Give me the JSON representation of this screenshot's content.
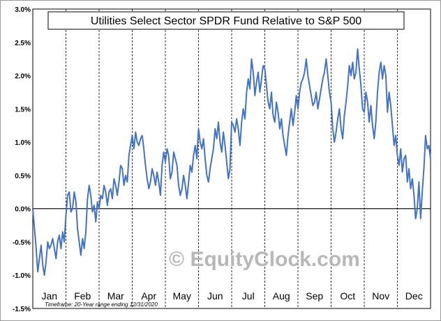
{
  "chart_data": {
    "type": "line",
    "title": "Utilities Select Sector SPDR Fund Relative to S&P 500",
    "xlabel": "",
    "ylabel": "",
    "ylim": [
      -1.5,
      3.0
    ],
    "yticks": [
      "3.0%",
      "2.5%",
      "2.0%",
      "1.5%",
      "1.0%",
      "0.5%",
      "0.0%",
      "-0.5%",
      "-1.0%",
      "-1.5%"
    ],
    "months": [
      "Jan",
      "Feb",
      "Mar",
      "Apr",
      "May",
      "Jun",
      "Jul",
      "Aug",
      "Sep",
      "Oct",
      "Nov",
      "Dec"
    ],
    "grid": "vertical-dashed",
    "zero_line": true,
    "timeframe_note": "Timeframe: 20-Year range ending 12/31/2020",
    "watermark": "© EquityClock.com",
    "line_color": "#4472c4",
    "series": [
      {
        "x": [
          0,
          0.05,
          0.1,
          0.15,
          0.2,
          0.25,
          0.3,
          0.35,
          0.4,
          0.45,
          0.5,
          0.55,
          0.6,
          0.65,
          0.7,
          0.75,
          0.8,
          0.85,
          0.9,
          0.95,
          1.0,
          1.05,
          1.1,
          1.15,
          1.2,
          1.25,
          1.3,
          1.35,
          1.4,
          1.45,
          1.5,
          1.55,
          1.6,
          1.65,
          1.7,
          1.75,
          1.8,
          1.85,
          1.9,
          1.95,
          2.0,
          2.05,
          2.1,
          2.15,
          2.2,
          2.25,
          2.3,
          2.35,
          2.4,
          2.45,
          2.5,
          2.55,
          2.6,
          2.65,
          2.7,
          2.75,
          2.8,
          2.85,
          2.9,
          2.95,
          3.0,
          3.05,
          3.1,
          3.15,
          3.2,
          3.25,
          3.3,
          3.35,
          3.4,
          3.45,
          3.5,
          3.55,
          3.6,
          3.65,
          3.7,
          3.75,
          3.8,
          3.85,
          3.9,
          3.95,
          4.0,
          4.05,
          4.1,
          4.15,
          4.2,
          4.25,
          4.3,
          4.35,
          4.4,
          4.45,
          4.5,
          4.55,
          4.6,
          4.65,
          4.7,
          4.75,
          4.8,
          4.85,
          4.9,
          4.95,
          5.0,
          5.05,
          5.1,
          5.15,
          5.2,
          5.25,
          5.3,
          5.35,
          5.4,
          5.45,
          5.5,
          5.55,
          5.6,
          5.65,
          5.7,
          5.75,
          5.8,
          5.85,
          5.9,
          5.95,
          6.0,
          6.05,
          6.1,
          6.15,
          6.2,
          6.25,
          6.3,
          6.35,
          6.4,
          6.45,
          6.5,
          6.55,
          6.6,
          6.65,
          6.7,
          6.75,
          6.8,
          6.85,
          6.9,
          6.95,
          7.0,
          7.05,
          7.1,
          7.15,
          7.2,
          7.25,
          7.3,
          7.35,
          7.4,
          7.45,
          7.5,
          7.55,
          7.6,
          7.65,
          7.7,
          7.75,
          7.8,
          7.85,
          7.9,
          7.95,
          8.0,
          8.05,
          8.1,
          8.15,
          8.2,
          8.25,
          8.3,
          8.35,
          8.4,
          8.45,
          8.5,
          8.55,
          8.6,
          8.65,
          8.7,
          8.75,
          8.8,
          8.85,
          8.9,
          8.95,
          9.0,
          9.05,
          9.1,
          9.15,
          9.2,
          9.25,
          9.3,
          9.35,
          9.4,
          9.45,
          9.5,
          9.55,
          9.6,
          9.65,
          9.7,
          9.75,
          9.8,
          9.85,
          9.9,
          9.95,
          10.0,
          10.05,
          10.1,
          10.15,
          10.2,
          10.25,
          10.3,
          10.35,
          10.4,
          10.45,
          10.5,
          10.55,
          10.6,
          10.65,
          10.7,
          10.75,
          10.8,
          10.85,
          10.9,
          10.95,
          11.0,
          11.05,
          11.1,
          11.15,
          11.2,
          11.25,
          11.3,
          11.35,
          11.4,
          11.45,
          11.5,
          11.55,
          11.6,
          11.65,
          11.7,
          11.75,
          11.8,
          11.85,
          11.9,
          11.95,
          12.0
        ],
        "values": [
          0.0,
          -0.3,
          -0.6,
          -0.95,
          -0.75,
          -0.55,
          -0.85,
          -1.0,
          -0.8,
          -0.5,
          -0.6,
          -0.55,
          -0.45,
          -0.6,
          -0.75,
          -0.5,
          -0.4,
          -0.6,
          -0.35,
          -0.5,
          -0.1,
          0.2,
          0.25,
          -0.05,
          0.0,
          0.25,
          0.1,
          -0.3,
          -0.5,
          -0.7,
          -0.45,
          -0.6,
          -0.35,
          0.15,
          0.35,
          0.2,
          -0.05,
          0.05,
          -0.2,
          0.1,
          0.0,
          0.2,
          0.15,
          0.35,
          0.25,
          0.05,
          0.25,
          0.3,
          0.15,
          0.45,
          0.35,
          0.2,
          0.4,
          0.65,
          0.6,
          0.35,
          0.5,
          0.4,
          0.8,
          0.95,
          1.1,
          0.9,
          1.15,
          1.0,
          0.95,
          1.05,
          1.1,
          0.9,
          0.65,
          0.45,
          0.3,
          0.4,
          0.6,
          0.5,
          0.35,
          0.55,
          0.4,
          0.2,
          0.65,
          0.85,
          0.7,
          0.9,
          0.8,
          0.45,
          0.55,
          0.85,
          0.75,
          0.65,
          0.35,
          0.2,
          0.3,
          0.5,
          0.35,
          0.15,
          0.4,
          0.65,
          0.55,
          0.8,
          0.95,
          0.75,
          1.2,
          1.0,
          0.9,
          1.05,
          0.75,
          0.5,
          0.4,
          0.6,
          0.75,
          0.9,
          1.2,
          1.05,
          1.3,
          1.0,
          0.85,
          1.15,
          0.95,
          0.7,
          0.45,
          0.6,
          1.3,
          1.25,
          1.15,
          1.35,
          1.2,
          0.95,
          1.3,
          1.5,
          1.35,
          1.75,
          1.95,
          1.8,
          2.25,
          2.05,
          1.7,
          1.9,
          2.05,
          1.75,
          1.95,
          2.15,
          2.1,
          1.85,
          1.6,
          1.5,
          1.75,
          1.4,
          1.3,
          1.6,
          1.45,
          1.2,
          1.35,
          1.1,
          0.95,
          0.8,
          1.1,
          1.3,
          1.5,
          1.25,
          1.45,
          1.7,
          1.5,
          1.75,
          1.9,
          1.95,
          2.05,
          2.25,
          2.0,
          1.85,
          1.7,
          1.55,
          1.6,
          1.75,
          1.5,
          1.65,
          1.8,
          1.95,
          2.05,
          2.25,
          2.0,
          1.75,
          1.6,
          1.2,
          1.0,
          1.15,
          1.35,
          1.5,
          1.2,
          1.05,
          1.4,
          1.6,
          1.85,
          2.15,
          2.0,
          2.2,
          1.95,
          2.05,
          2.4,
          2.1,
          1.85,
          1.5,
          1.45,
          1.75,
          1.6,
          1.3,
          1.55,
          1.25,
          1.05,
          1.3,
          1.75,
          2.05,
          2.2,
          1.95,
          2.15,
          2.0,
          1.45,
          1.75,
          1.55,
          1.25,
          0.95,
          1.1,
          0.8,
          0.65,
          0.9,
          0.55,
          0.75,
          0.8,
          0.4,
          0.6,
          0.3,
          0.45,
          0.2,
          -0.15,
          0.0,
          0.4,
          -0.15,
          0.25,
          0.6,
          1.1,
          0.9,
          0.95,
          0.75
        ]
      }
    ]
  }
}
